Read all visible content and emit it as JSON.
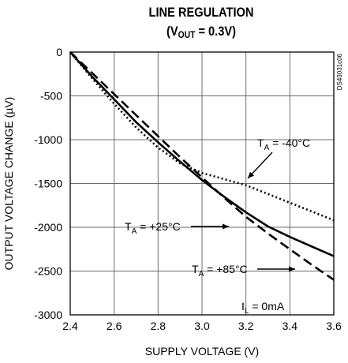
{
  "chart_data": {
    "type": "line",
    "title": "LINE REGULATION",
    "subtitle": "(VOUT = 0.3V)",
    "subtitle_parts": {
      "open": "(V",
      "sub": "OUT",
      "rest": " = 0.3V)"
    },
    "xlabel": "SUPPLY VOLTAGE (V)",
    "ylabel": "OUTPUT VOLTAGE CHANGE (µV)",
    "xlim": [
      2.4,
      3.6
    ],
    "ylim": [
      -3000,
      0
    ],
    "xticks": [
      "2.4",
      "2.6",
      "2.8",
      "3.0",
      "3.2",
      "3.4",
      "3.6"
    ],
    "yticks": [
      "0",
      "-500",
      "-1000",
      "-1500",
      "-2000",
      "-2500",
      "-3000"
    ],
    "grid": true,
    "code": "DS43031c06",
    "condition": {
      "base": "I",
      "sub": "L",
      "rest": " = 0mA"
    },
    "x": [
      2.4,
      2.5,
      2.6,
      2.7,
      2.8,
      2.9,
      3.0,
      3.1,
      3.2,
      3.3,
      3.4,
      3.5,
      3.6
    ],
    "series": [
      {
        "name": "TA = -40°C",
        "label": {
          "base": "T",
          "sub": "A",
          "rest": " = -40°C"
        },
        "style": "dotted",
        "values": [
          0,
          -300,
          -590,
          -860,
          -1090,
          -1270,
          -1380,
          -1450,
          -1520,
          -1620,
          -1720,
          -1820,
          -1920
        ]
      },
      {
        "name": "TA = +25°C",
        "label": {
          "base": "T",
          "sub": "A",
          "rest": " = +25°C"
        },
        "style": "solid",
        "values": [
          0,
          -280,
          -540,
          -800,
          -1030,
          -1250,
          -1460,
          -1650,
          -1830,
          -1990,
          -2110,
          -2220,
          -2330
        ]
      },
      {
        "name": "TA = +85°C",
        "label": {
          "base": "T",
          "sub": "A",
          "rest": " = +85°C"
        },
        "style": "dashed",
        "values": [
          0,
          -240,
          -480,
          -720,
          -960,
          -1200,
          -1430,
          -1660,
          -1880,
          -2070,
          -2250,
          -2430,
          -2600
        ]
      }
    ]
  }
}
